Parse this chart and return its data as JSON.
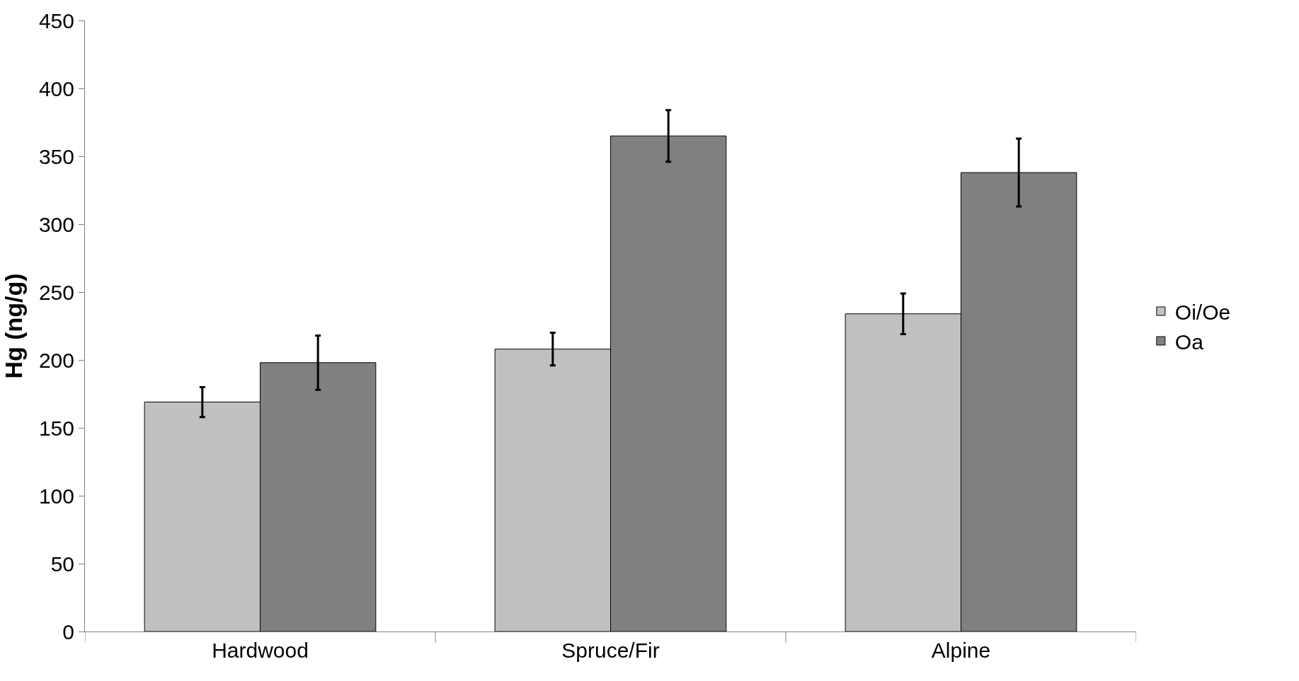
{
  "chart_data": {
    "type": "bar",
    "ylabel": "Hg (ng/g)",
    "categories": [
      "Hardwood",
      "Spruce/Fir",
      "Alpine"
    ],
    "series": [
      {
        "name": "Oi/Oe",
        "color": "#c0c0c0",
        "values": [
          169,
          208,
          234
        ],
        "errors": [
          11,
          12,
          15
        ]
      },
      {
        "name": "Oa",
        "color": "#808080",
        "values": [
          198,
          365,
          338
        ],
        "errors": [
          20,
          19,
          25
        ]
      }
    ],
    "ylim": [
      0,
      450
    ],
    "yticks": [
      0,
      50,
      100,
      150,
      200,
      250,
      300,
      350,
      400,
      450
    ],
    "legend": "right"
  }
}
